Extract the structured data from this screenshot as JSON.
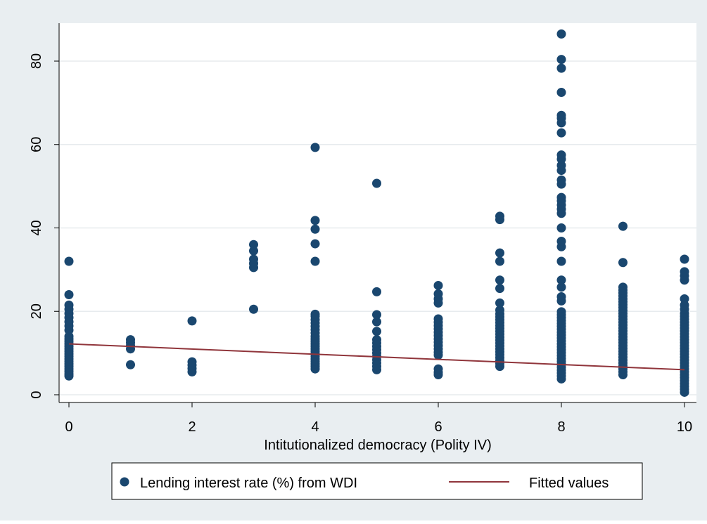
{
  "chart_data": {
    "type": "scatter",
    "xlabel": "Intitutionalized democracy (Polity IV)",
    "ylabel": "",
    "xlim": [
      0,
      10
    ],
    "ylim": [
      0,
      85
    ],
    "xticks": [
      0,
      2,
      4,
      6,
      8,
      10
    ],
    "yticks": [
      0,
      20,
      40,
      60,
      80
    ],
    "grid": "horizontal",
    "legend_position": "bottom",
    "colors": {
      "outer_background": "#e9eef1",
      "plot_background": "#ffffff",
      "grid": "#e7ebee",
      "marker": "#1a476f",
      "fit_line": "#90353b"
    },
    "series": [
      {
        "name": "Lending interest rate (%) from WDI",
        "kind": "scatter",
        "points": [
          [
            0,
            4.5
          ],
          [
            0,
            5.0
          ],
          [
            0,
            5.6
          ],
          [
            0,
            6.2
          ],
          [
            0,
            6.8
          ],
          [
            0,
            7.4
          ],
          [
            0,
            8.0
          ],
          [
            0,
            8.6
          ],
          [
            0,
            9.2
          ],
          [
            0,
            9.8
          ],
          [
            0,
            10.4
          ],
          [
            0,
            11.0
          ],
          [
            0,
            11.6
          ],
          [
            0,
            12.2
          ],
          [
            0,
            12.8
          ],
          [
            0,
            13.4
          ],
          [
            0,
            14.0
          ],
          [
            0,
            15.5
          ],
          [
            0,
            16.5
          ],
          [
            0,
            17.5
          ],
          [
            0,
            18.5
          ],
          [
            0,
            19.5
          ],
          [
            0,
            20.5
          ],
          [
            0,
            21.5
          ],
          [
            0,
            24.0
          ],
          [
            0,
            32.0
          ],
          [
            1,
            7.2
          ],
          [
            1,
            11.0
          ],
          [
            1,
            11.8
          ],
          [
            1,
            12.5
          ],
          [
            1,
            13.2
          ],
          [
            2,
            5.5
          ],
          [
            2,
            6.3
          ],
          [
            2,
            7.1
          ],
          [
            2,
            7.9
          ],
          [
            2,
            17.7
          ],
          [
            3,
            20.5
          ],
          [
            3,
            30.5
          ],
          [
            3,
            31.5
          ],
          [
            3,
            32.5
          ],
          [
            3,
            34.5
          ],
          [
            3,
            36.0
          ],
          [
            4,
            6.2
          ],
          [
            4,
            6.8
          ],
          [
            4,
            7.4
          ],
          [
            4,
            8.0
          ],
          [
            4,
            8.6
          ],
          [
            4,
            9.2
          ],
          [
            4,
            9.8
          ],
          [
            4,
            10.4
          ],
          [
            4,
            11.0
          ],
          [
            4,
            11.6
          ],
          [
            4,
            12.2
          ],
          [
            4,
            12.8
          ],
          [
            4,
            13.4
          ],
          [
            4,
            14.0
          ],
          [
            4,
            14.8
          ],
          [
            4,
            15.6
          ],
          [
            4,
            16.4
          ],
          [
            4,
            17.2
          ],
          [
            4,
            18.0
          ],
          [
            4,
            18.8
          ],
          [
            4,
            19.3
          ],
          [
            4,
            32.0
          ],
          [
            4,
            36.2
          ],
          [
            4,
            39.7
          ],
          [
            4,
            41.8
          ],
          [
            4,
            59.3
          ],
          [
            5,
            6.0
          ],
          [
            5,
            6.8
          ],
          [
            5,
            7.6
          ],
          [
            5,
            8.4
          ],
          [
            5,
            9.2
          ],
          [
            5,
            10.0
          ],
          [
            5,
            10.8
          ],
          [
            5,
            11.6
          ],
          [
            5,
            12.4
          ],
          [
            5,
            13.2
          ],
          [
            5,
            15.2
          ],
          [
            5,
            17.5
          ],
          [
            5,
            19.2
          ],
          [
            5,
            24.7
          ],
          [
            5,
            50.7
          ],
          [
            6,
            4.8
          ],
          [
            6,
            5.4
          ],
          [
            6,
            6.2
          ],
          [
            6,
            9.5
          ],
          [
            6,
            10.2
          ],
          [
            6,
            11.0
          ],
          [
            6,
            11.8
          ],
          [
            6,
            12.6
          ],
          [
            6,
            13.4
          ],
          [
            6,
            14.2
          ],
          [
            6,
            15.0
          ],
          [
            6,
            15.8
          ],
          [
            6,
            16.6
          ],
          [
            6,
            17.4
          ],
          [
            6,
            18.2
          ],
          [
            6,
            22.0
          ],
          [
            6,
            23.0
          ],
          [
            6,
            24.2
          ],
          [
            6,
            26.2
          ],
          [
            7,
            6.8
          ],
          [
            7,
            7.5
          ],
          [
            7,
            8.2
          ],
          [
            7,
            8.9
          ],
          [
            7,
            9.6
          ],
          [
            7,
            10.3
          ],
          [
            7,
            11.0
          ],
          [
            7,
            11.7
          ],
          [
            7,
            12.4
          ],
          [
            7,
            13.1
          ],
          [
            7,
            13.8
          ],
          [
            7,
            14.5
          ],
          [
            7,
            15.2
          ],
          [
            7,
            15.9
          ],
          [
            7,
            16.6
          ],
          [
            7,
            17.3
          ],
          [
            7,
            18.0
          ],
          [
            7,
            18.7
          ],
          [
            7,
            19.4
          ],
          [
            7,
            20.3
          ],
          [
            7,
            22.0
          ],
          [
            7,
            25.5
          ],
          [
            7,
            27.5
          ],
          [
            7,
            32.0
          ],
          [
            7,
            34.0
          ],
          [
            7,
            42.0
          ],
          [
            7,
            42.8
          ],
          [
            8,
            3.8
          ],
          [
            8,
            4.5
          ],
          [
            8,
            5.2
          ],
          [
            8,
            5.9
          ],
          [
            8,
            6.6
          ],
          [
            8,
            7.3
          ],
          [
            8,
            8.0
          ],
          [
            8,
            8.7
          ],
          [
            8,
            9.4
          ],
          [
            8,
            10.1
          ],
          [
            8,
            10.8
          ],
          [
            8,
            11.5
          ],
          [
            8,
            12.2
          ],
          [
            8,
            12.9
          ],
          [
            8,
            13.6
          ],
          [
            8,
            14.3
          ],
          [
            8,
            15.0
          ],
          [
            8,
            15.7
          ],
          [
            8,
            16.4
          ],
          [
            8,
            17.1
          ],
          [
            8,
            17.8
          ],
          [
            8,
            18.5
          ],
          [
            8,
            19.2
          ],
          [
            8,
            19.9
          ],
          [
            8,
            22.5
          ],
          [
            8,
            23.5
          ],
          [
            8,
            25.8
          ],
          [
            8,
            27.5
          ],
          [
            8,
            32.0
          ],
          [
            8,
            35.5
          ],
          [
            8,
            36.8
          ],
          [
            8,
            40.0
          ],
          [
            8,
            43.5
          ],
          [
            8,
            44.5
          ],
          [
            8,
            45.5
          ],
          [
            8,
            46.5
          ],
          [
            8,
            47.3
          ],
          [
            8,
            50.5
          ],
          [
            8,
            51.5
          ],
          [
            8,
            53.8
          ],
          [
            8,
            55.0
          ],
          [
            8,
            56.5
          ],
          [
            8,
            57.5
          ],
          [
            8,
            62.8
          ],
          [
            8,
            65.2
          ],
          [
            8,
            66.3
          ],
          [
            8,
            67.0
          ],
          [
            8,
            72.5
          ],
          [
            8,
            78.3
          ],
          [
            8,
            80.4
          ],
          [
            8,
            86.5
          ],
          [
            9,
            4.8
          ],
          [
            9,
            5.5
          ],
          [
            9,
            6.2
          ],
          [
            9,
            6.9
          ],
          [
            9,
            7.6
          ],
          [
            9,
            8.3
          ],
          [
            9,
            9.0
          ],
          [
            9,
            9.7
          ],
          [
            9,
            10.4
          ],
          [
            9,
            11.1
          ],
          [
            9,
            11.8
          ],
          [
            9,
            12.5
          ],
          [
            9,
            13.2
          ],
          [
            9,
            13.9
          ],
          [
            9,
            14.6
          ],
          [
            9,
            15.3
          ],
          [
            9,
            16.0
          ],
          [
            9,
            16.7
          ],
          [
            9,
            17.4
          ],
          [
            9,
            18.1
          ],
          [
            9,
            18.8
          ],
          [
            9,
            19.5
          ],
          [
            9,
            20.2
          ],
          [
            9,
            20.9
          ],
          [
            9,
            21.6
          ],
          [
            9,
            22.3
          ],
          [
            9,
            23.0
          ],
          [
            9,
            23.7
          ],
          [
            9,
            24.4
          ],
          [
            9,
            25.1
          ],
          [
            9,
            25.8
          ],
          [
            9,
            31.7
          ],
          [
            9,
            40.4
          ],
          [
            10,
            0.6
          ],
          [
            10,
            1.3
          ],
          [
            10,
            2.0
          ],
          [
            10,
            2.7
          ],
          [
            10,
            3.4
          ],
          [
            10,
            4.1
          ],
          [
            10,
            4.8
          ],
          [
            10,
            5.5
          ],
          [
            10,
            6.2
          ],
          [
            10,
            6.9
          ],
          [
            10,
            7.6
          ],
          [
            10,
            8.3
          ],
          [
            10,
            9.0
          ],
          [
            10,
            9.7
          ],
          [
            10,
            10.4
          ],
          [
            10,
            11.1
          ],
          [
            10,
            11.8
          ],
          [
            10,
            12.5
          ],
          [
            10,
            13.2
          ],
          [
            10,
            13.9
          ],
          [
            10,
            14.6
          ],
          [
            10,
            15.3
          ],
          [
            10,
            16.0
          ],
          [
            10,
            16.7
          ],
          [
            10,
            17.4
          ],
          [
            10,
            18.1
          ],
          [
            10,
            18.8
          ],
          [
            10,
            19.5
          ],
          [
            10,
            20.5
          ],
          [
            10,
            21.5
          ],
          [
            10,
            23.0
          ],
          [
            10,
            27.5
          ],
          [
            10,
            28.5
          ],
          [
            10,
            29.5
          ],
          [
            10,
            32.5
          ]
        ]
      },
      {
        "name": "Fitted values",
        "kind": "line",
        "points": [
          [
            0,
            12.2
          ],
          [
            10,
            6.0
          ]
        ]
      }
    ]
  }
}
